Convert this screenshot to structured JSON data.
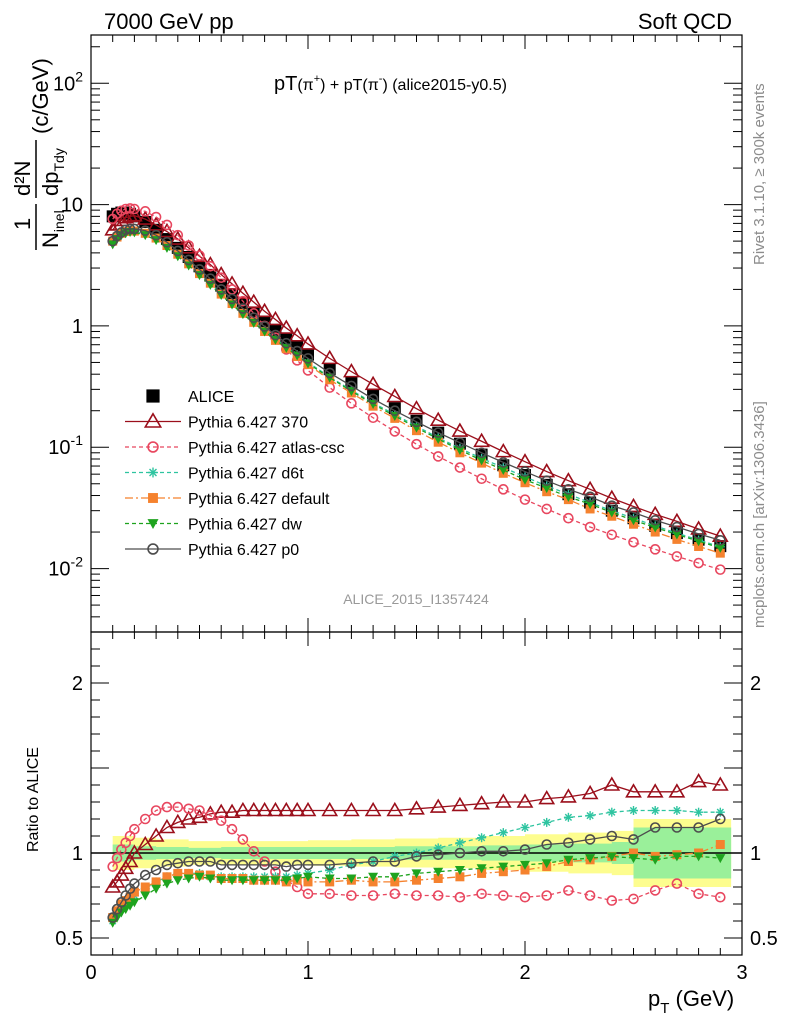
{
  "header": {
    "left": "7000 GeV pp",
    "right": "Soft QCD"
  },
  "plot_title": {
    "main": "pT",
    "part1": "(π",
    "sup1": "+",
    "part2": ") + pT",
    "part3": "(π",
    "sup2": "-",
    "part4": ") (alice2015-y0.5)"
  },
  "watermark": "ALICE_2015_I1357424",
  "side_labels": {
    "top": "Rivet 3.1.10, ≥ 300k events",
    "bottom": "mcplots.cern.ch [arXiv:1306.3436]"
  },
  "ylabel_top": {
    "one": "1",
    "n": "N",
    "nsub": "inel",
    "d2n": "d²N",
    "dp": "dp",
    "dpsub": "T",
    "dy": "dy",
    "unit": "(c/GeV)"
  },
  "ylabel_bottom": "Ratio to ALICE",
  "xlabel": {
    "p": "p",
    "sub": "T",
    "unit": "(GeV)"
  },
  "colors": {
    "alice": "#000000",
    "p370": "#9b0f1b",
    "atlas_csc": "#e8475f",
    "d6t": "#2ec4a0",
    "default": "#f5822e",
    "dw": "#1ea31e",
    "p0": "#4d4d4d",
    "band_inner": "#9af09a",
    "band_outer": "#fdfd8f"
  },
  "chart_data": [
    {
      "type": "scatter",
      "title": "pT(π+) + pT(π-) (alice2015-y0.5)",
      "xlabel": "p_T (GeV)",
      "ylabel": "1/N_inel d²N/dp_T dy (c/GeV)",
      "xlim": [
        0,
        3
      ],
      "ylim": [
        0.003,
        250
      ],
      "yscale": "log",
      "x_ticks": [
        "0",
        "1",
        "2",
        "3"
      ],
      "y_ticks": [
        "10^-2",
        "10^-1",
        "1",
        "10",
        "10^2"
      ],
      "legend_position": "left-middle",
      "x": [
        0.1,
        0.12,
        0.14,
        0.16,
        0.18,
        0.2,
        0.25,
        0.3,
        0.35,
        0.4,
        0.45,
        0.5,
        0.55,
        0.6,
        0.65,
        0.7,
        0.75,
        0.8,
        0.85,
        0.9,
        0.95,
        1.0,
        1.1,
        1.2,
        1.3,
        1.4,
        1.5,
        1.6,
        1.7,
        1.8,
        1.9,
        2.0,
        2.1,
        2.2,
        2.3,
        2.4,
        2.5,
        2.6,
        2.7,
        2.8,
        2.9
      ],
      "series": [
        {
          "name": "ALICE",
          "values": [
            8.0,
            8.4,
            8.6,
            8.6,
            8.4,
            8.0,
            7.2,
            6.2,
            5.2,
            4.4,
            3.7,
            3.1,
            2.6,
            2.15,
            1.8,
            1.5,
            1.27,
            1.07,
            0.91,
            0.78,
            0.67,
            0.58,
            0.44,
            0.34,
            0.265,
            0.21,
            0.165,
            0.132,
            0.107,
            0.087,
            0.071,
            0.059,
            0.049,
            0.041,
            0.035,
            0.03,
            0.026,
            0.0225,
            0.0196,
            0.0173,
            0.0153
          ]
        },
        {
          "name": "Pythia 6.427 370",
          "values": [
            6.2,
            6.8,
            7.4,
            7.8,
            8.0,
            8.1,
            7.6,
            6.8,
            6.0,
            5.2,
            4.4,
            3.75,
            3.2,
            2.65,
            2.22,
            1.86,
            1.57,
            1.32,
            1.13,
            0.96,
            0.83,
            0.71,
            0.54,
            0.42,
            0.33,
            0.262,
            0.208,
            0.167,
            0.136,
            0.112,
            0.092,
            0.076,
            0.063,
            0.053,
            0.045,
            0.038,
            0.0325,
            0.028,
            0.0245,
            0.0212,
            0.0185
          ]
        },
        {
          "name": "Pythia 6.427 atlas-csc",
          "values": [
            7.6,
            8.4,
            8.9,
            9.2,
            9.3,
            9.2,
            8.8,
            7.9,
            6.8,
            5.6,
            4.6,
            3.8,
            3.1,
            2.5,
            2.0,
            1.6,
            1.27,
            1.0,
            0.8,
            0.64,
            0.52,
            0.43,
            0.31,
            0.23,
            0.175,
            0.135,
            0.106,
            0.084,
            0.068,
            0.055,
            0.045,
            0.037,
            0.031,
            0.026,
            0.022,
            0.019,
            0.0165,
            0.0144,
            0.0126,
            0.0111,
            0.0098
          ]
        },
        {
          "name": "Pythia 6.427 d6t",
          "values": [
            4.9,
            5.4,
            5.8,
            6.0,
            6.1,
            6.0,
            5.8,
            5.3,
            4.6,
            3.9,
            3.25,
            2.7,
            2.25,
            1.84,
            1.54,
            1.29,
            1.09,
            0.92,
            0.78,
            0.67,
            0.58,
            0.5,
            0.38,
            0.295,
            0.232,
            0.186,
            0.149,
            0.12,
            0.098,
            0.081,
            0.068,
            0.057,
            0.048,
            0.041,
            0.035,
            0.03,
            0.026,
            0.0225,
            0.0196,
            0.0172,
            0.0151
          ]
        },
        {
          "name": "Pythia 6.427 default",
          "values": [
            5.0,
            5.4,
            5.8,
            6.0,
            6.1,
            6.05,
            5.8,
            5.3,
            4.6,
            3.9,
            3.25,
            2.7,
            2.25,
            1.83,
            1.53,
            1.27,
            1.07,
            0.9,
            0.76,
            0.65,
            0.56,
            0.48,
            0.36,
            0.28,
            0.218,
            0.173,
            0.137,
            0.11,
            0.09,
            0.074,
            0.061,
            0.051,
            0.043,
            0.037,
            0.031,
            0.027,
            0.0232,
            0.02,
            0.0174,
            0.0152,
            0.0134
          ]
        },
        {
          "name": "Pythia 6.427 dw",
          "values": [
            4.7,
            5.2,
            5.6,
            5.8,
            5.95,
            5.9,
            5.6,
            5.1,
            4.4,
            3.75,
            3.15,
            2.62,
            2.18,
            1.8,
            1.5,
            1.25,
            1.06,
            0.9,
            0.77,
            0.66,
            0.57,
            0.49,
            0.375,
            0.29,
            0.227,
            0.181,
            0.145,
            0.117,
            0.095,
            0.078,
            0.065,
            0.054,
            0.046,
            0.039,
            0.034,
            0.029,
            0.025,
            0.0218,
            0.0191,
            0.0168,
            0.0148
          ]
        },
        {
          "name": "Pythia 6.427 p0",
          "values": [
            5.0,
            5.5,
            5.9,
            6.2,
            6.3,
            6.3,
            6.1,
            5.6,
            4.9,
            4.15,
            3.5,
            2.92,
            2.45,
            2.0,
            1.67,
            1.39,
            1.17,
            0.99,
            0.84,
            0.72,
            0.62,
            0.54,
            0.41,
            0.32,
            0.25,
            0.2,
            0.162,
            0.132,
            0.109,
            0.09,
            0.075,
            0.063,
            0.053,
            0.045,
            0.039,
            0.033,
            0.029,
            0.025,
            0.022,
            0.0193,
            0.0171
          ]
        }
      ]
    },
    {
      "type": "line",
      "ylabel": "Ratio to ALICE",
      "xlabel": "p_T (GeV)",
      "xlim": [
        0,
        3
      ],
      "ylim": [
        0.4,
        2.3
      ],
      "x_ticks": [
        "0",
        "1",
        "2",
        "3"
      ],
      "y_ticks": [
        "0.5",
        "1",
        "2"
      ],
      "reference_line": 1,
      "x": [
        0.1,
        0.12,
        0.14,
        0.16,
        0.18,
        0.2,
        0.25,
        0.3,
        0.35,
        0.4,
        0.45,
        0.5,
        0.55,
        0.6,
        0.65,
        0.7,
        0.75,
        0.8,
        0.85,
        0.9,
        0.95,
        1.0,
        1.1,
        1.2,
        1.3,
        1.4,
        1.5,
        1.6,
        1.7,
        1.8,
        1.9,
        2.0,
        2.1,
        2.2,
        2.3,
        2.4,
        2.5,
        2.6,
        2.7,
        2.8,
        2.9
      ],
      "uncertainty_band": {
        "x": [
          0.1,
          0.2,
          0.3,
          0.45,
          0.6,
          0.8,
          1.0,
          1.2,
          1.4,
          1.6,
          1.8,
          2.0,
          2.2,
          2.4,
          2.5,
          2.95
        ],
        "inner": [
          0.05,
          0.04,
          0.035,
          0.03,
          0.035,
          0.035,
          0.035,
          0.035,
          0.04,
          0.04,
          0.045,
          0.05,
          0.055,
          0.065,
          0.15,
          0.15
        ],
        "outer": [
          0.1,
          0.09,
          0.08,
          0.07,
          0.07,
          0.07,
          0.075,
          0.08,
          0.085,
          0.09,
          0.1,
          0.11,
          0.12,
          0.13,
          0.2,
          0.2
        ]
      },
      "series": [
        {
          "name": "Pythia 6.427 370",
          "values": [
            0.8,
            0.83,
            0.87,
            0.91,
            0.95,
            1.0,
            1.05,
            1.1,
            1.15,
            1.18,
            1.2,
            1.21,
            1.23,
            1.24,
            1.24,
            1.25,
            1.25,
            1.25,
            1.25,
            1.25,
            1.25,
            1.25,
            1.25,
            1.25,
            1.25,
            1.25,
            1.26,
            1.27,
            1.28,
            1.29,
            1.3,
            1.3,
            1.32,
            1.33,
            1.35,
            1.4,
            1.36,
            1.36,
            1.36,
            1.42,
            1.4
          ]
        },
        {
          "name": "Pythia 6.427 atlas-csc",
          "values": [
            0.92,
            0.97,
            1.02,
            1.06,
            1.1,
            1.14,
            1.2,
            1.25,
            1.27,
            1.27,
            1.26,
            1.25,
            1.22,
            1.19,
            1.14,
            1.08,
            1.01,
            0.95,
            0.89,
            0.84,
            0.8,
            0.76,
            0.76,
            0.75,
            0.75,
            0.76,
            0.75,
            0.75,
            0.74,
            0.76,
            0.75,
            0.74,
            0.75,
            0.78,
            0.75,
            0.72,
            0.73,
            0.78,
            0.82,
            0.76,
            0.74
          ]
        },
        {
          "name": "Pythia 6.427 d6t",
          "values": [
            0.6,
            0.64,
            0.68,
            0.7,
            0.72,
            0.75,
            0.79,
            0.83,
            0.86,
            0.88,
            0.88,
            0.88,
            0.86,
            0.86,
            0.86,
            0.86,
            0.86,
            0.86,
            0.86,
            0.86,
            0.87,
            0.88,
            0.9,
            0.93,
            0.95,
            0.98,
            1.0,
            1.03,
            1.06,
            1.09,
            1.12,
            1.15,
            1.18,
            1.21,
            1.22,
            1.24,
            1.25,
            1.25,
            1.25,
            1.24,
            1.24
          ]
        },
        {
          "name": "Pythia 6.427 default",
          "values": [
            0.62,
            0.66,
            0.7,
            0.72,
            0.74,
            0.77,
            0.8,
            0.83,
            0.86,
            0.88,
            0.88,
            0.87,
            0.87,
            0.85,
            0.85,
            0.85,
            0.84,
            0.84,
            0.84,
            0.83,
            0.84,
            0.83,
            0.83,
            0.84,
            0.83,
            0.83,
            0.84,
            0.85,
            0.86,
            0.88,
            0.89,
            0.9,
            0.92,
            0.95,
            0.96,
            0.98,
            1.0,
            0.98,
            0.99,
            1.0,
            1.05
          ]
        },
        {
          "name": "Pythia 6.427 dw",
          "values": [
            0.59,
            0.62,
            0.65,
            0.67,
            0.69,
            0.71,
            0.75,
            0.79,
            0.82,
            0.84,
            0.85,
            0.86,
            0.85,
            0.84,
            0.84,
            0.84,
            0.84,
            0.84,
            0.84,
            0.84,
            0.85,
            0.86,
            0.85,
            0.85,
            0.86,
            0.86,
            0.88,
            0.89,
            0.9,
            0.91,
            0.92,
            0.93,
            0.94,
            0.96,
            0.97,
            0.98,
            0.97,
            0.96,
            0.98,
            0.98,
            0.97
          ]
        },
        {
          "name": "Pythia 6.427 p0",
          "values": [
            0.62,
            0.67,
            0.71,
            0.75,
            0.79,
            0.82,
            0.87,
            0.9,
            0.93,
            0.94,
            0.95,
            0.95,
            0.95,
            0.93,
            0.93,
            0.93,
            0.93,
            0.93,
            0.93,
            0.92,
            0.93,
            0.93,
            0.93,
            0.94,
            0.95,
            0.95,
            0.98,
            0.99,
            1.0,
            1.01,
            1.01,
            1.02,
            1.05,
            1.06,
            1.08,
            1.1,
            1.08,
            1.15,
            1.15,
            1.15,
            1.2
          ]
        }
      ]
    }
  ]
}
